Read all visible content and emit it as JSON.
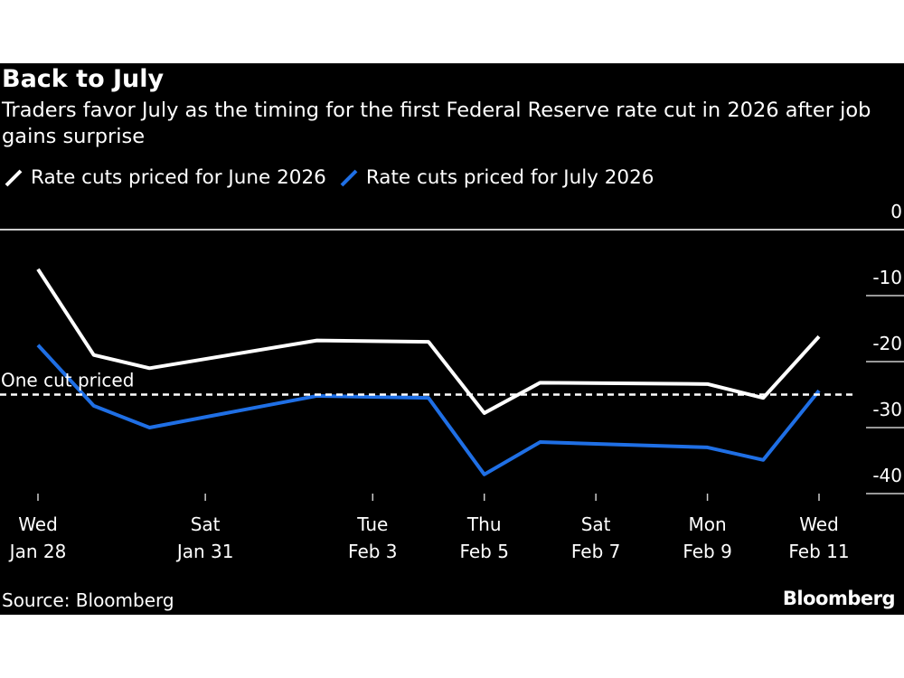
{
  "title": "Back to July",
  "subtitle": "Traders favor July as the timing for the first Federal Reserve rate cut in 2026 after job gains surprise",
  "source": "Source: Bloomberg",
  "logo": "Bloomberg",
  "colors": {
    "background": "#000000",
    "june": "#ffffff",
    "july": "#1f6fe5"
  },
  "chart_data": {
    "type": "line",
    "title": "Back to July",
    "subtitle": "Traders favor July as the timing for the first Federal Reserve rate cut in 2026 after job gains surprise",
    "xlabel": "",
    "ylabel": "",
    "y_axis_side": "right",
    "ylim": [
      -42,
      0
    ],
    "yticks": [
      0,
      -10,
      -20,
      -30,
      -40
    ],
    "ytick_labels": [
      "0",
      "-10",
      "-20",
      "-30",
      "-40"
    ],
    "xlim": [
      "2026-01-28",
      "2026-02-11"
    ],
    "xticks": [
      {
        "date": "2026-01-28",
        "day": "Wed",
        "label": "Jan 28"
      },
      {
        "date": "2026-01-31",
        "day": "Sat",
        "label": "Jan 31"
      },
      {
        "date": "2026-02-03",
        "day": "Tue",
        "label": "Feb 3"
      },
      {
        "date": "2026-02-05",
        "day": "Thu",
        "label": "Feb 5"
      },
      {
        "date": "2026-02-07",
        "day": "Sat",
        "label": "Feb 7"
      },
      {
        "date": "2026-02-09",
        "day": "Mon",
        "label": "Feb 9"
      },
      {
        "date": "2026-02-11",
        "day": "Wed",
        "label": "Feb 11"
      }
    ],
    "legend_position": "top-left",
    "grid": "horizontal",
    "x": [
      "2026-01-28",
      "2026-01-29",
      "2026-01-30",
      "2026-02-02",
      "2026-02-04",
      "2026-02-05",
      "2026-02-06",
      "2026-02-09",
      "2026-02-10",
      "2026-02-11"
    ],
    "series": [
      {
        "name": "Rate cuts priced for June 2026",
        "color": "#ffffff",
        "values": [
          -6.0,
          -19.0,
          -21.0,
          -16.8,
          -17.0,
          -27.8,
          -23.2,
          -23.4,
          -25.5,
          -16.2
        ]
      },
      {
        "name": "Rate cuts priced for July 2026",
        "color": "#1f6fe5",
        "values": [
          -17.5,
          -26.7,
          -30.0,
          -25.2,
          -25.5,
          -37.1,
          -32.2,
          -33.0,
          -34.9,
          -24.4
        ]
      }
    ],
    "annotations": [
      {
        "label": "One cut priced",
        "y": -25,
        "style": "dashed"
      }
    ]
  }
}
